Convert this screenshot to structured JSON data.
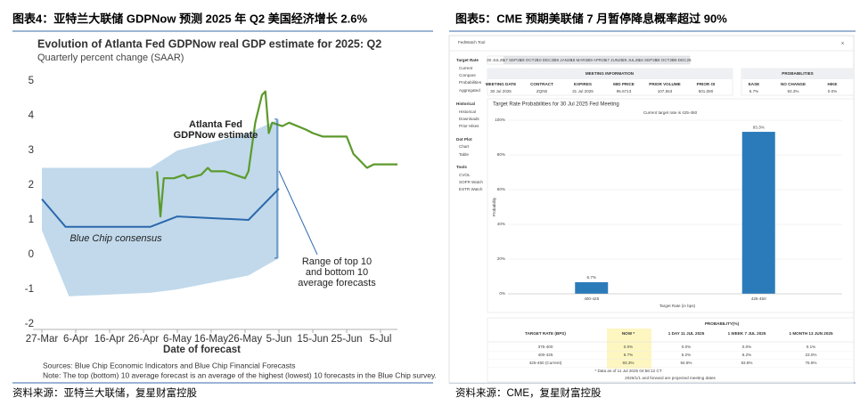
{
  "header_left": "图表4：亚特兰大联储 GDPNow 预测 2025 年 Q2 美国经济增长 2.6%",
  "header_right": "图表5：CME 预期美联储 7 月暂停降息概率超过 90%",
  "source_left": "资料来源：亚特兰大联储，复星财富控股",
  "source_right": "资料来源：CME，复星财富控股",
  "chart_data": [
    {
      "type": "line",
      "title": "Evolution of Atlanta Fed GDPNow real GDP estimate for 2025: Q2",
      "subtitle": "Quarterly percent change (SAAR)",
      "x_label": "Date of forecast",
      "notes": [
        "Sources: Blue Chip Economic Indicators and Blue Chip Financial Forecasts",
        "Note: The top (bottom) 10 average forecast is an average of the highest (lowest) 10 forecasts in the Blue Chip survey."
      ],
      "xlim": [
        "27-Mar",
        "10-Jul"
      ],
      "xticks": [
        "27-Mar",
        "6-Apr",
        "16-Apr",
        "26-Apr",
        "6-May",
        "16-May",
        "26-May",
        "5-Jun",
        "15-Jun",
        "25-Jun",
        "5-Jul"
      ],
      "ylim": [
        -2,
        5
      ],
      "yticks": [
        -2,
        -1,
        0,
        1,
        2,
        3,
        4,
        5
      ],
      "grid": false,
      "series": [
        {
          "name": [
            "Range of top 10",
            "and bottom 10",
            "average forecasts"
          ],
          "color": "#c1d9eb",
          "x": [
            "27-Mar",
            "4-Apr",
            "28-Apr",
            "6-May",
            "27-May",
            "5-Jun"
          ],
          "high": [
            2.5,
            2.5,
            2.5,
            3.0,
            3.5,
            3.9
          ],
          "low": [
            0.7,
            -1.2,
            -1.1,
            -1.0,
            -0.6,
            -0.1
          ]
        },
        {
          "name": [
            "Blue Chip consensus"
          ],
          "color": "#2b68ad",
          "x": [
            "27-Mar",
            "3-Apr",
            "28-Apr",
            "6-May",
            "27-May",
            "5-Jun"
          ],
          "values": [
            1.6,
            0.8,
            0.8,
            1.1,
            1.0,
            1.9
          ]
        },
        {
          "name": [
            "Atlanta Fed",
            "GDPNow estimate"
          ],
          "color": "#5c9a2c",
          "x": [
            "30-Apr",
            "1-May",
            "2-May",
            "5-May",
            "8-May",
            "9-May",
            "13-May",
            "15-May",
            "16-May",
            "20-May",
            "23-May",
            "26-May",
            "27-May",
            "29-May",
            "31-May",
            "1-Jun",
            "2-Jun",
            "3-Jun",
            "6-Jun",
            "8-Jun",
            "13-Jun",
            "15-Jun",
            "18-Jun",
            "25-Jun",
            "27-Jun",
            "1-Jul",
            "3-Jul",
            "10-Jul"
          ],
          "values": [
            2.4,
            1.1,
            2.2,
            2.2,
            2.3,
            2.2,
            2.3,
            2.5,
            2.4,
            2.4,
            2.3,
            2.2,
            2.4,
            3.8,
            4.6,
            4.7,
            3.5,
            3.8,
            3.7,
            3.8,
            3.6,
            3.5,
            3.4,
            3.4,
            2.9,
            2.5,
            2.6,
            2.6
          ]
        }
      ]
    },
    {
      "type": "bar",
      "title": "Target Rate Probabilities for 30 Jul 2025 Fed Meeting",
      "subtitle": "Current target rate is 425-450",
      "x_label": "Target Rate (in bps)",
      "y_label": "Probability",
      "categories": [
        "400-425",
        "425-450"
      ],
      "values": [
        6.7,
        93.3
      ],
      "value_labels": [
        "6.7%",
        "93.3%"
      ],
      "color": "#2b7bba",
      "ylim": [
        0,
        100
      ],
      "yticks": [
        {
          "value": 0,
          "label": "0%"
        },
        {
          "value": 20,
          "label": "20%"
        },
        {
          "value": 40,
          "label": "40%"
        },
        {
          "value": 60,
          "label": "60%"
        },
        {
          "value": 80,
          "label": "80%"
        },
        {
          "value": 100,
          "label": "100%"
        }
      ],
      "grid": true
    }
  ],
  "fedwatch": {
    "tool_title": "FedWatch Tool",
    "close": "X",
    "tabs": [
      "30 JUL25",
      "17 SEP25",
      "29 OCT25",
      "10 DEC25",
      "28 JAN26",
      "18 MAR26",
      "29 APR26",
      "17 JUN26",
      "29 JUL26",
      "16 SEP26",
      "28 OCT26",
      "09 DEC26"
    ],
    "sidebar": [
      "Target Rate",
      "Current",
      "Compare",
      "Probabilities",
      "Aggregated",
      "Historical",
      "Historical",
      "Downloads",
      "Prior Hikes",
      "Dot Plot",
      "Chart",
      "Table",
      "Tools",
      "CVOL",
      "SOFR Watch",
      "ESTR Watch"
    ],
    "meeting_info": {
      "title": "MEETING INFORMATION",
      "headers": [
        "MEETING DATE",
        "CONTRACT",
        "EXPIRES",
        "MID PRICE",
        "PRIOR VOLUME",
        "PRIOR OI"
      ],
      "row": [
        "30 Jul 2025",
        "ZQN5",
        "31 Jul 2025",
        "95.6713",
        "107,553",
        "501,080"
      ]
    },
    "probabilities": {
      "title": "PROBABILITIES",
      "headers": [
        "EASE",
        "NO CHANGE",
        "HIKE"
      ],
      "row": [
        "6.7%",
        "93.3%",
        "0.0%"
      ]
    },
    "table": {
      "group": "PROBABILITY(%)",
      "headers": [
        "TARGET RATE (BPS)",
        "NOW *",
        "1 DAY 11 JUL 2025",
        "1 WEEK 7 JUL 2025",
        "1 MONTH 13 JUN 2025"
      ],
      "rows": [
        [
          "375-400",
          "0.0%",
          "0.0%",
          "0.0%",
          "0.1%"
        ],
        [
          "400-425",
          "6.7%",
          "5.2%",
          "6.2%",
          "23.0%"
        ],
        [
          "425-450 (Current)",
          "93.3%",
          "94.8%",
          "93.8%",
          "76.9%"
        ]
      ]
    },
    "footnote": "* Data as of 11 Jul 2025 04:56:12 CT",
    "footer": "2026/1/1 and forward are projected meeting dates"
  }
}
